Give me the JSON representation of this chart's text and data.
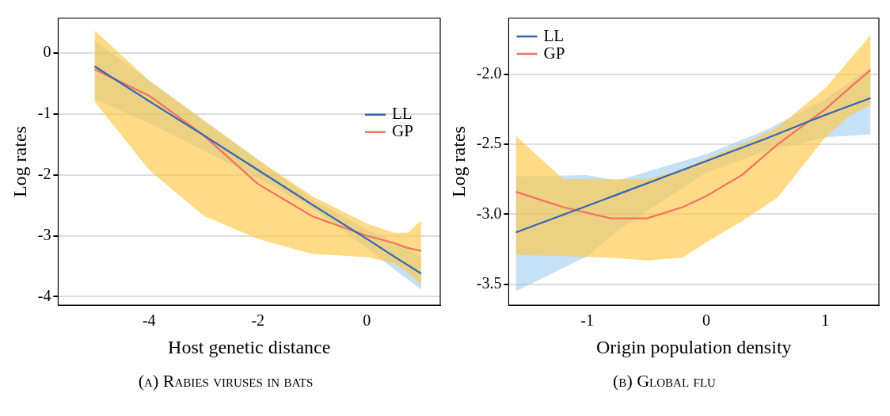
{
  "chart_data": [
    {
      "type": "line",
      "xlabel": "Host genetic distance",
      "ylabel": "Log rates",
      "annotations": [
        "(a) Rabies viruses in bats"
      ],
      "xlim": [
        -5.67,
        1.35
      ],
      "ylim": [
        -4.14,
        0.57
      ],
      "xticks": [
        -4,
        -2,
        0
      ],
      "yticks": [
        -4,
        -3,
        -2,
        -1,
        0
      ],
      "grid": "y",
      "legend": "right",
      "series": [
        {
          "name": "LL",
          "color": "#3465b5",
          "x": [
            -5,
            -4,
            -3,
            -2,
            -1,
            0,
            0.5,
            1
          ],
          "values": [
            -0.22,
            -0.79,
            -1.35,
            -1.92,
            -2.49,
            -3.05,
            -3.34,
            -3.62
          ],
          "lower": [
            -0.76,
            -1.15,
            -1.6,
            -2.05,
            -2.55,
            -3.2,
            -3.55,
            -3.88
          ],
          "upper": [
            0.2,
            -0.45,
            -1.1,
            -1.75,
            -2.4,
            -2.9,
            -3.1,
            -3.35
          ]
        },
        {
          "name": "GP",
          "color": "#f87060",
          "x": [
            -5,
            -4,
            -3,
            -2,
            -1,
            0,
            0.5,
            0.75,
            1
          ],
          "values": [
            -0.27,
            -0.7,
            -1.35,
            -2.15,
            -2.68,
            -3.0,
            -3.12,
            -3.2,
            -3.25
          ],
          "lower": [
            -0.8,
            -1.92,
            -2.67,
            -3.05,
            -3.3,
            -3.35,
            -3.45,
            -3.6,
            -3.8
          ],
          "upper": [
            0.37,
            -0.45,
            -1.1,
            -1.75,
            -2.35,
            -2.8,
            -2.95,
            -2.95,
            -2.75
          ]
        }
      ]
    },
    {
      "type": "line",
      "xlabel": "Origin population density",
      "ylabel": "Log rates",
      "annotations": [
        "(b) Global flu"
      ],
      "xlim": [
        -1.66,
        1.45
      ],
      "ylim": [
        -3.65,
        -1.6
      ],
      "xticks": [
        -1,
        0,
        1
      ],
      "yticks": [
        {
          "value": -3.5,
          "label": "-3.5"
        },
        {
          "value": -3,
          "label": "-3.0"
        },
        {
          "value": -2.5,
          "label": "-2.5"
        },
        {
          "value": -2,
          "label": "-2.0"
        }
      ],
      "grid": "y",
      "legend": "top left",
      "series": [
        {
          "name": "LL",
          "color": "#3465b5",
          "x": [
            -1.6,
            -1,
            -0.75,
            0,
            0.5,
            1,
            1.38
          ],
          "values": [
            -3.13,
            -2.94,
            -2.86,
            -2.62,
            -2.46,
            -2.29,
            -2.17
          ],
          "lower": [
            -3.55,
            -3.3,
            -3.12,
            -2.7,
            -2.55,
            -2.45,
            -2.43
          ],
          "upper": [
            -2.73,
            -2.72,
            -2.76,
            -2.57,
            -2.4,
            -2.18,
            -1.95
          ]
        },
        {
          "name": "GP",
          "color": "#f87060",
          "x": [
            -1.6,
            -1.2,
            -0.8,
            -0.5,
            -0.2,
            0,
            0.3,
            0.6,
            1,
            1.2,
            1.38
          ],
          "values": [
            -2.84,
            -2.95,
            -3.03,
            -3.03,
            -2.95,
            -2.87,
            -2.72,
            -2.5,
            -2.25,
            -2.1,
            -1.97
          ],
          "lower": [
            -3.29,
            -3.3,
            -3.31,
            -3.33,
            -3.31,
            -3.2,
            -3.05,
            -2.88,
            -2.45,
            -2.3,
            -2.22
          ],
          "upper": [
            -2.44,
            -2.75,
            -2.75,
            -2.75,
            -2.68,
            -2.6,
            -2.5,
            -2.38,
            -2.1,
            -1.9,
            -1.72
          ]
        }
      ]
    }
  ]
}
